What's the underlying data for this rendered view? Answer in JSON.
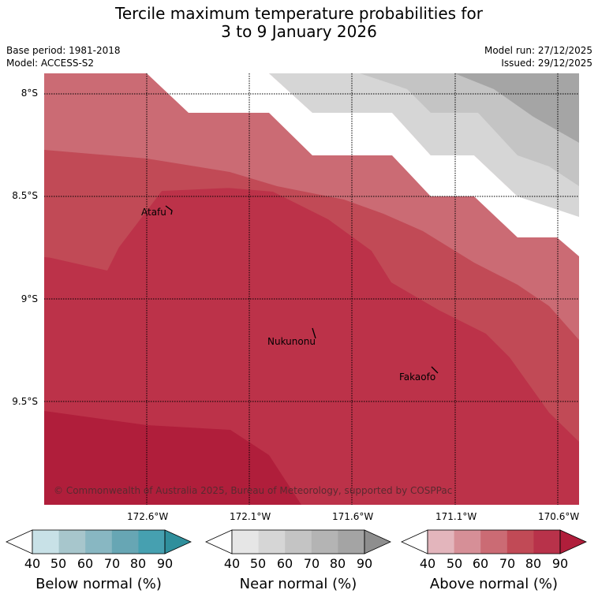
{
  "title": {
    "line1": "Tercile maximum temperature probabilities for",
    "line2": "3 to 9 January 2026"
  },
  "meta": {
    "base_period": "Base period: 1981-2018",
    "model": "Model: ACCESS-S2",
    "model_run": "Model run: 27/12/2025",
    "issued": "Issued: 29/12/2025"
  },
  "map": {
    "lat_labels": [
      "8°S",
      "8.5°S",
      "9°S",
      "9.5°S"
    ],
    "lon_labels": [
      "172.6°W",
      "172.1°W",
      "171.6°W",
      "171.1°W",
      "170.6°W"
    ],
    "places": [
      "Atafu",
      "Nukunonu",
      "Fakaofo"
    ],
    "copyright": "© Commonwealth of Australia 2025, Bureau of Meteorology, supported by COSPPac"
  },
  "colorbars": [
    {
      "name": "below",
      "label": "Below normal (%)",
      "ticks": [
        "40",
        "50",
        "60",
        "70",
        "80",
        "90"
      ],
      "colors": [
        "#ffffff",
        "#c8e1e7",
        "#a7c6cc",
        "#88b7c2",
        "#67a6b4",
        "#46a0b0",
        "#2f8f9c"
      ]
    },
    {
      "name": "near",
      "label": "Near normal (%)",
      "ticks": [
        "40",
        "50",
        "60",
        "70",
        "80",
        "90"
      ],
      "colors": [
        "#ffffff",
        "#e6e6e6",
        "#d6d6d6",
        "#c4c4c4",
        "#b4b4b4",
        "#a4a4a4",
        "#8e8e8e"
      ]
    },
    {
      "name": "above",
      "label": "Above normal (%)",
      "ticks": [
        "40",
        "50",
        "60",
        "70",
        "80",
        "90"
      ],
      "colors": [
        "#ffffff",
        "#e3b5bc",
        "#d68f97",
        "#cb6b74",
        "#c14a56",
        "#b8324a",
        "#b01e3b"
      ]
    }
  ]
}
